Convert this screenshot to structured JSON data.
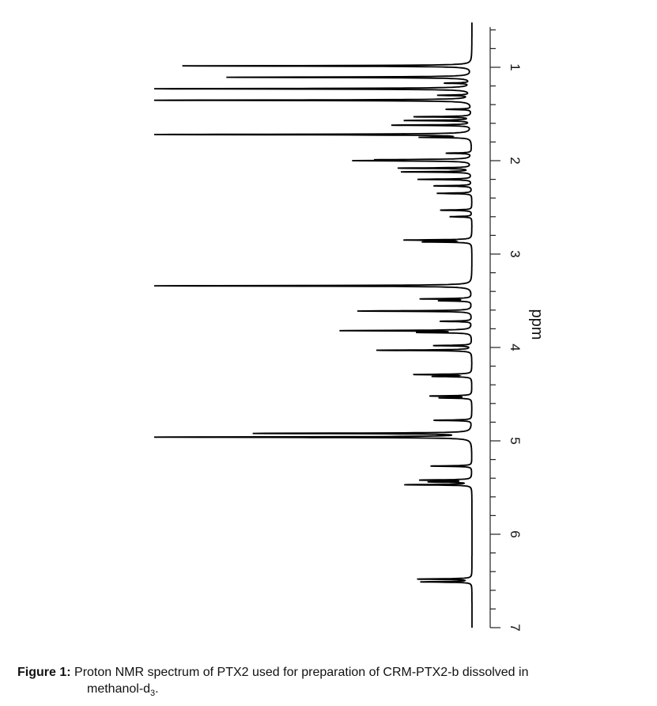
{
  "chart_data": {
    "type": "line",
    "orientation": "rotated 90 degrees: chemical shift axis vertical on the right, intensity extending leftward",
    "xlabel": "ppm",
    "xlim": [
      0.57,
      7.0
    ],
    "xticks": [
      "1",
      "2",
      "3",
      "4",
      "5",
      "6",
      "7"
    ],
    "minor_tick_step": 0.2,
    "ylabel": "",
    "ylim": [
      0,
      100
    ],
    "grid": false,
    "line_color": "#000000",
    "peaks": [
      {
        "ppm": 0.985,
        "intensity": 91
      },
      {
        "ppm": 1.107,
        "intensity": 77
      },
      {
        "ppm": 1.17,
        "intensity": 8
      },
      {
        "ppm": 1.23,
        "intensity": 100
      },
      {
        "ppm": 1.3,
        "intensity": 10
      },
      {
        "ppm": 1.353,
        "intensity": 100
      },
      {
        "ppm": 1.45,
        "intensity": 8
      },
      {
        "ppm": 1.53,
        "intensity": 18
      },
      {
        "ppm": 1.57,
        "intensity": 21
      },
      {
        "ppm": 1.62,
        "intensity": 25
      },
      {
        "ppm": 1.72,
        "intensity": 100
      },
      {
        "ppm": 1.75,
        "intensity": 15
      },
      {
        "ppm": 1.92,
        "intensity": 8
      },
      {
        "ppm": 1.99,
        "intensity": 26
      },
      {
        "ppm": 2.0,
        "intensity": 34
      },
      {
        "ppm": 2.08,
        "intensity": 23
      },
      {
        "ppm": 2.12,
        "intensity": 22
      },
      {
        "ppm": 2.2,
        "intensity": 17
      },
      {
        "ppm": 2.27,
        "intensity": 12
      },
      {
        "ppm": 2.35,
        "intensity": 11
      },
      {
        "ppm": 2.53,
        "intensity": 10
      },
      {
        "ppm": 2.6,
        "intensity": 7
      },
      {
        "ppm": 2.85,
        "intensity": 21
      },
      {
        "ppm": 2.87,
        "intensity": 15
      },
      {
        "ppm": 3.34,
        "intensity": 100
      },
      {
        "ppm": 3.48,
        "intensity": 16
      },
      {
        "ppm": 3.5,
        "intensity": 10
      },
      {
        "ppm": 3.61,
        "intensity": 36
      },
      {
        "ppm": 3.72,
        "intensity": 10
      },
      {
        "ppm": 3.82,
        "intensity": 41
      },
      {
        "ppm": 3.84,
        "intensity": 16
      },
      {
        "ppm": 3.98,
        "intensity": 12
      },
      {
        "ppm": 4.03,
        "intensity": 30
      },
      {
        "ppm": 4.29,
        "intensity": 18
      },
      {
        "ppm": 4.31,
        "intensity": 12
      },
      {
        "ppm": 4.52,
        "intensity": 13
      },
      {
        "ppm": 4.54,
        "intensity": 10
      },
      {
        "ppm": 4.78,
        "intensity": 12
      },
      {
        "ppm": 4.92,
        "intensity": 68
      },
      {
        "ppm": 4.96,
        "intensity": 100
      },
      {
        "ppm": 5.27,
        "intensity": 13
      },
      {
        "ppm": 5.42,
        "intensity": 16
      },
      {
        "ppm": 5.44,
        "intensity": 13
      },
      {
        "ppm": 5.47,
        "intensity": 21
      },
      {
        "ppm": 6.48,
        "intensity": 17
      },
      {
        "ppm": 6.51,
        "intensity": 16
      }
    ]
  },
  "caption": {
    "label": "Figure 1:",
    "line1": "Proton NMR spectrum of PTX2 used for preparation of CRM-PTX2-b dissolved in",
    "line2_main": "methanol-d",
    "line2_sub": "3",
    "line2_end": "."
  }
}
